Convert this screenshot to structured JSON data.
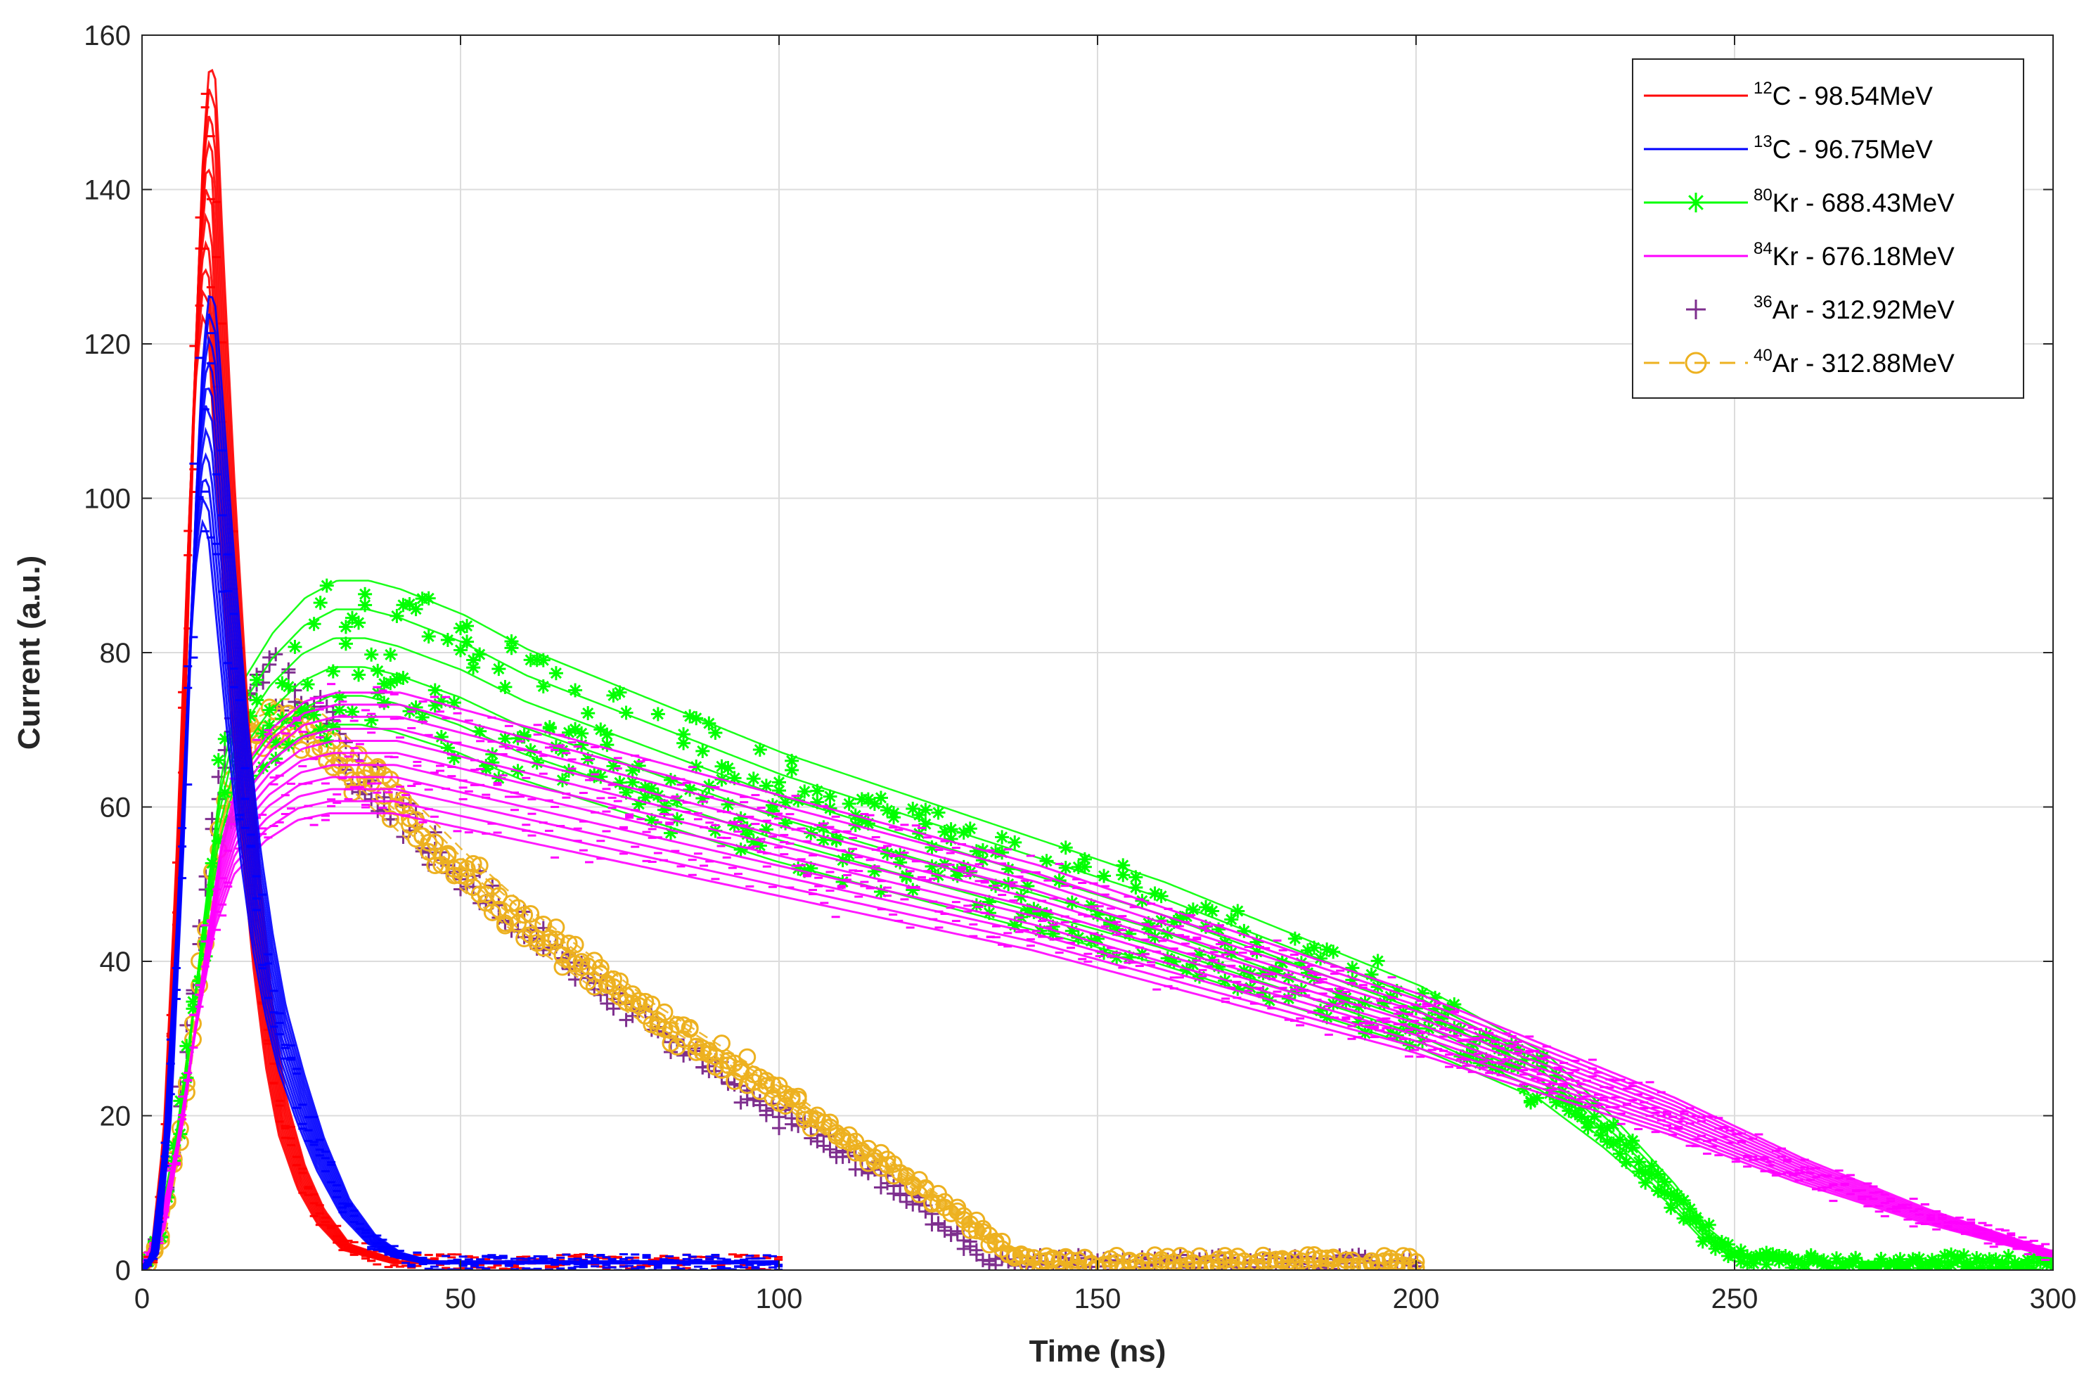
{
  "chart_data": {
    "type": "line",
    "title": "",
    "xlabel": "Time (ns)",
    "ylabel": "Current (a.u.)",
    "xlim": [
      0,
      300
    ],
    "ylim": [
      0,
      160
    ],
    "xticks": [
      0,
      50,
      100,
      150,
      200,
      250,
      300
    ],
    "yticks": [
      0,
      20,
      40,
      60,
      80,
      100,
      120,
      140,
      160
    ],
    "grid": true,
    "legend_position": "top-right",
    "series": [
      {
        "name": "¹²C - 98.54MeV",
        "isotope": "12",
        "element": "C",
        "energy": " - 98.54MeV",
        "color": "#ff0000",
        "marker": "none",
        "line": "solid",
        "band": 14,
        "x": [
          0,
          2,
          4,
          6,
          8,
          9,
          10,
          11,
          12,
          14,
          16,
          18,
          20,
          22,
          25,
          28,
          32,
          36,
          40,
          45,
          50,
          60,
          70,
          80,
          90,
          100
        ],
        "y": [
          0,
          2,
          20,
          60,
          110,
          130,
          140,
          138,
          120,
          90,
          65,
          45,
          30,
          20,
          12,
          7,
          3,
          2,
          1,
          1,
          1,
          1,
          1,
          1,
          1,
          1
        ]
      },
      {
        "name": "¹³C - 96.75MeV",
        "isotope": "13",
        "element": "C",
        "energy": " - 96.75MeV",
        "color": "#0000ff",
        "marker": "none",
        "line": "solid",
        "band": 16,
        "x": [
          0,
          2,
          4,
          6,
          8,
          9,
          10,
          11,
          12,
          14,
          16,
          18,
          20,
          22,
          25,
          28,
          32,
          36,
          40,
          45,
          50,
          60,
          70,
          80,
          90,
          100
        ],
        "y": [
          0,
          2,
          18,
          50,
          90,
          105,
          112,
          110,
          100,
          80,
          62,
          48,
          38,
          30,
          22,
          15,
          8,
          4,
          2,
          1,
          1,
          1,
          1,
          1,
          1,
          1
        ]
      },
      {
        "name": "⁸⁰Kr - 688.43MeV",
        "isotope": "80",
        "element": "Kr",
        "energy": " - 688.43MeV",
        "color": "#00ff00",
        "marker": "star",
        "line": "solid",
        "band": 14,
        "x": [
          0,
          3,
          6,
          9,
          12,
          15,
          20,
          25,
          30,
          35,
          40,
          50,
          60,
          80,
          100,
          120,
          140,
          160,
          180,
          200,
          220,
          230,
          240,
          245,
          250,
          260,
          280,
          300
        ],
        "y": [
          0,
          5,
          20,
          40,
          58,
          68,
          74,
          78,
          80,
          80,
          79,
          76,
          72,
          66,
          60,
          55,
          50,
          45,
          39,
          33,
          25,
          18,
          10,
          5,
          2,
          1,
          1,
          1
        ]
      },
      {
        "name": "⁸⁴Kr - 676.18MeV",
        "isotope": "84",
        "element": "Kr",
        "energy": " - 676.18MeV",
        "color": "#ff00ff",
        "marker": "none",
        "line": "solid",
        "band": 14,
        "x": [
          0,
          3,
          6,
          9,
          12,
          15,
          20,
          25,
          30,
          35,
          40,
          50,
          60,
          80,
          100,
          120,
          140,
          160,
          180,
          200,
          220,
          240,
          260,
          280,
          300
        ],
        "y": [
          0,
          5,
          18,
          35,
          50,
          58,
          63,
          66,
          67,
          67,
          67,
          65,
          63,
          59,
          55,
          51,
          47,
          42,
          37,
          32,
          26,
          20,
          13,
          7,
          2
        ]
      },
      {
        "name": "³⁶Ar - 312.92MeV",
        "isotope": "36",
        "element": "Ar",
        "energy": " - 312.92MeV",
        "color": "#7e2f8e",
        "marker": "plus",
        "line": "none",
        "band": 5,
        "x": [
          0,
          3,
          6,
          9,
          12,
          15,
          18,
          21,
          24,
          28,
          32,
          36,
          40,
          45,
          50,
          60,
          70,
          80,
          90,
          100,
          110,
          120,
          125,
          130,
          135,
          140,
          150,
          160,
          170,
          180,
          190,
          200
        ],
        "y": [
          0,
          5,
          22,
          45,
          62,
          72,
          76,
          76,
          74,
          71,
          67,
          63,
          59,
          55,
          51,
          44,
          38,
          32,
          26,
          20,
          15,
          10,
          6,
          3,
          1,
          1,
          1,
          1,
          1,
          1,
          1,
          1
        ]
      },
      {
        "name": "⁴⁰Ar - 312.88MeV",
        "isotope": "40",
        "element": "Ar",
        "energy": " - 312.88MeV",
        "color": "#edb120",
        "marker": "circle",
        "line": "dashed",
        "band": 5,
        "x": [
          0,
          3,
          6,
          9,
          12,
          15,
          18,
          21,
          24,
          28,
          32,
          36,
          40,
          45,
          50,
          60,
          70,
          80,
          90,
          100,
          110,
          120,
          125,
          130,
          135,
          140,
          150,
          160,
          170,
          180,
          190,
          200
        ],
        "y": [
          0,
          4,
          18,
          38,
          56,
          66,
          70,
          71,
          71,
          69,
          66,
          63,
          60,
          56,
          52,
          45,
          39,
          33,
          28,
          23,
          17,
          12,
          9,
          6,
          3,
          1,
          1,
          1,
          1,
          1,
          1,
          1
        ]
      }
    ]
  }
}
